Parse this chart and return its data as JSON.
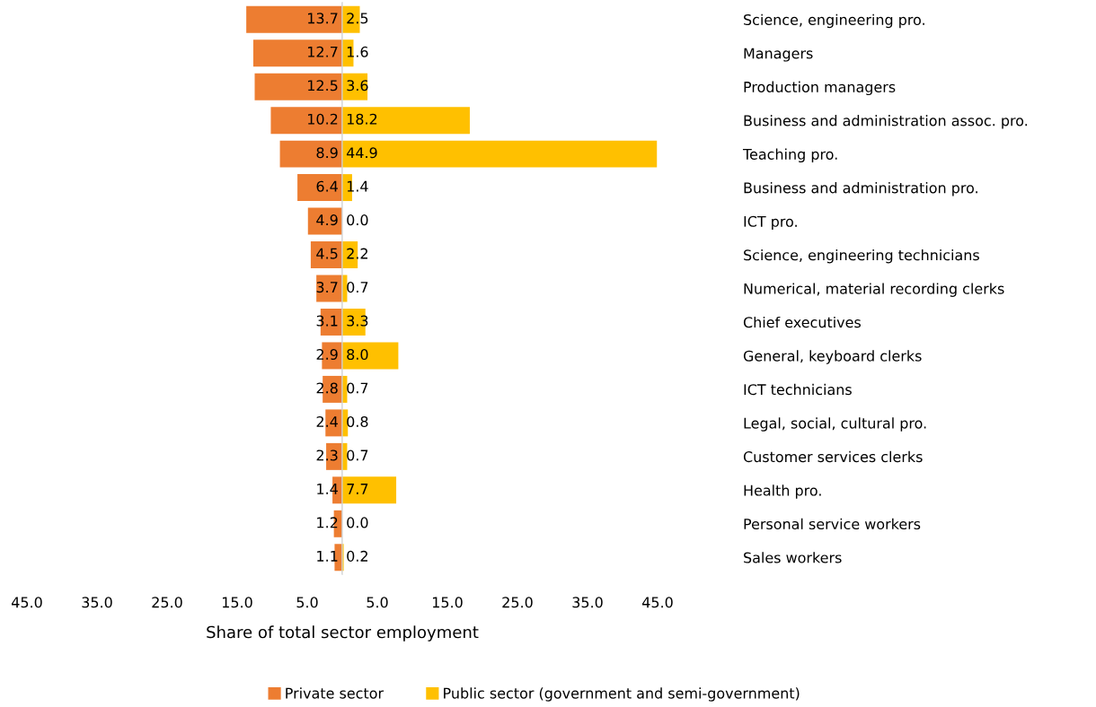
{
  "chart_data": [
    {
      "type": "bar",
      "orientation": "horizontal",
      "tick_labels": "x",
      "legend": "bottom",
      "categories": [
        null,
        null,
        null,
        null,
        null,
        null,
        null,
        null,
        null,
        null,
        null,
        null,
        null,
        null,
        null,
        null,
        null
      ],
      "series": [
        {
          "name": "Private sector",
          "color": "#ed7d31",
          "values": [
            13.7,
            12.7,
            12.5,
            10.2,
            8.9,
            6.4,
            4.9,
            4.5,
            3.7,
            3.1,
            2.9,
            2.8,
            2.4,
            2.3,
            1.4,
            1.2,
            1.1
          ],
          "value_labels": [
            "13.7",
            "12.7",
            "12.5",
            "10.2",
            "8.9",
            "6.4",
            "4.9",
            "4.5",
            "3.7",
            "3.1",
            "2.9",
            "2.8",
            "2.4",
            "2.3",
            "1.4",
            "1.2",
            "1.1"
          ]
        }
      ],
      "xlim": [
        45,
        0
      ],
      "xticks": [
        {
          "value": 45,
          "label": "45.0"
        },
        {
          "value": 35,
          "label": "35.0"
        },
        {
          "value": 25,
          "label": "25.0"
        },
        {
          "value": 15,
          "label": "15.0"
        },
        {
          "value": 5,
          "label": "5.0"
        }
      ],
      "grid": false
    },
    {
      "type": "bar",
      "orientation": "horizontal",
      "legend": "bottom",
      "xlabel": "Share of total sector employment",
      "categories": [
        "Science, engineering pro.",
        "Managers",
        "Production managers",
        "Business and administration assoc. pro.",
        "Teaching pro.",
        "Business and administration pro.",
        "ICT pro.",
        "Science, engineering technicians",
        "Numerical, material recording clerks",
        "Chief executives",
        "General, keyboard clerks",
        "ICT technicians",
        "Legal, social, cultural pro.",
        "Customer services clerks",
        "Health pro.",
        "Personal service workers",
        "Sales workers"
      ],
      "series": [
        {
          "name": "Public sector (government and semi-government)",
          "color": "#ffc000",
          "values": [
            2.5,
            1.6,
            3.6,
            18.2,
            44.9,
            1.4,
            0.0,
            2.2,
            0.7,
            3.3,
            8.0,
            0.7,
            0.8,
            0.7,
            7.7,
            0.0,
            0.2
          ],
          "value_labels": [
            "2.5",
            "1.6",
            "3.6",
            "18.2",
            "44.9",
            "1.4",
            "0.0",
            "2.2",
            "0.7",
            "3.3",
            "8.0",
            "0.7",
            "0.8",
            "0.7",
            "7.7",
            "0.0",
            "0.2"
          ]
        }
      ],
      "xlim": [
        0,
        45
      ],
      "xticks": [
        {
          "value": 5,
          "label": "5.0"
        },
        {
          "value": 15,
          "label": "15.0"
        },
        {
          "value": 25,
          "label": "25.0"
        },
        {
          "value": 35,
          "label": "35.0"
        },
        {
          "value": 45,
          "label": "45.0"
        }
      ],
      "grid": false
    }
  ]
}
